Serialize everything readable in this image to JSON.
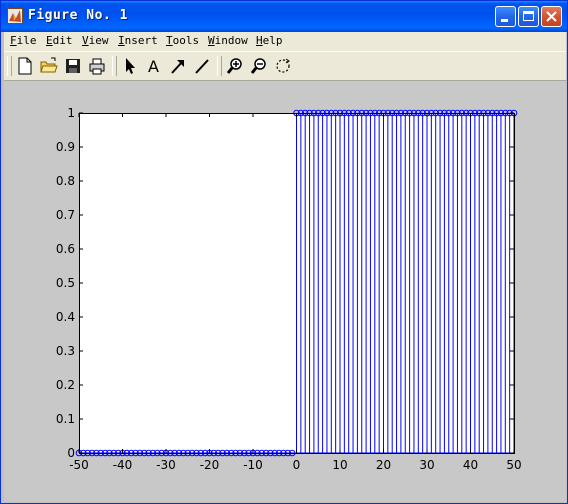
{
  "window": {
    "title": "Figure No. 1",
    "app_icon": "matlab-icon",
    "controls": [
      "minimize-icon",
      "maximize-icon",
      "close-icon"
    ]
  },
  "menu": {
    "items": [
      {
        "first": "F",
        "rest": "ile"
      },
      {
        "first": "E",
        "rest": "dit"
      },
      {
        "first": "V",
        "rest": "iew"
      },
      {
        "first": "I",
        "rest": "nsert"
      },
      {
        "first": "T",
        "rest": "ools"
      },
      {
        "first": "W",
        "rest": "indow"
      },
      {
        "first": "H",
        "rest": "elp"
      }
    ]
  },
  "toolbar": {
    "tools": [
      "new-file-icon",
      "open-folder-icon",
      "save-icon",
      "print-icon",
      "select-arrow-icon",
      "insert-text-icon",
      "insert-arrow-icon",
      "insert-line-icon",
      "zoom-in-icon",
      "zoom-out-icon",
      "rotate-3d-icon"
    ]
  },
  "colors": {
    "stem": "#0000ff",
    "axes_bg": "#ffffff",
    "figure_bg": "#c8c8c8"
  },
  "chart_data": {
    "type": "stem",
    "title": "",
    "xlabel": "",
    "ylabel": "",
    "xlim": [
      -50,
      50
    ],
    "ylim": [
      0,
      1
    ],
    "xticks": [
      "-50",
      "-40",
      "-30",
      "-20",
      "-10",
      "0",
      "10",
      "20",
      "30",
      "40",
      "50"
    ],
    "yticks": [
      "0",
      "0.1",
      "0.2",
      "0.3",
      "0.4",
      "0.5",
      "0.6",
      "0.7",
      "0.8",
      "0.9",
      "1"
    ],
    "grid": false,
    "marker": "circle",
    "series": [
      {
        "x_start": -50,
        "x_end": 50,
        "x_step": 1,
        "values_rule": "unit step: y = 0 for x < 0, y = 1 for x >= 0"
      }
    ]
  }
}
